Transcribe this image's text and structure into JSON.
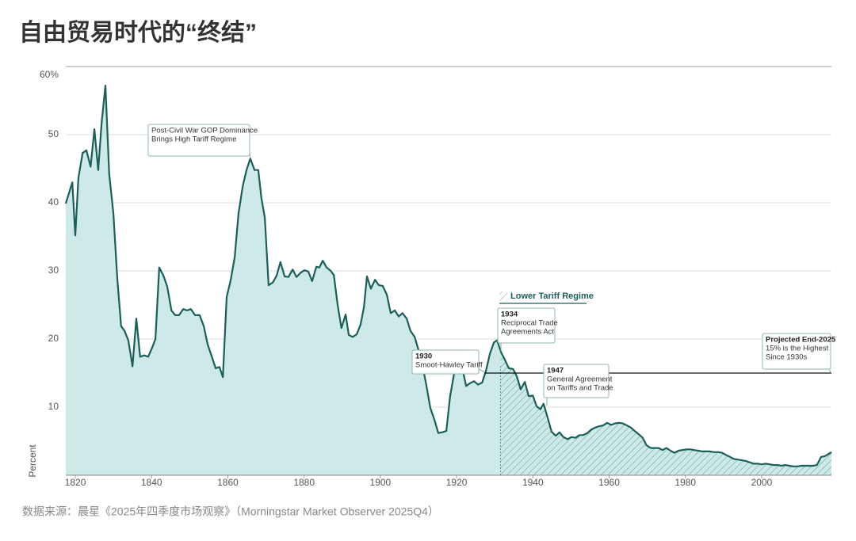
{
  "chart_data": {
    "type": "area",
    "title": "自由贸易时代的“终结”",
    "source": "数据来源：晨星《2025年四季度市场观察》（Morningstar Market Observer 2025Q4）",
    "y_label": "Percent",
    "xlim": [
      1817.5,
      2018.3
    ],
    "xticks": [
      1820,
      1840,
      1860,
      1880,
      1900,
      1920,
      1940,
      1960,
      1980,
      2000
    ],
    "ylim": [
      0,
      60
    ],
    "yticks": [
      10,
      20,
      30,
      40,
      50,
      {
        "value": 60,
        "label": "60%"
      }
    ],
    "grid": true,
    "line_color": "#1b5f5b",
    "fill_color": "#cdeae9",
    "series": [
      {
        "x": [
          1817.5,
          1819.2,
          1820,
          1820.8,
          1821.9,
          1822.9,
          1824,
          1825,
          1826,
          1826.9,
          1827.9,
          1828.9,
          1830,
          1831,
          1832,
          1832.9,
          1833.9,
          1835,
          1836,
          1837,
          1838.1,
          1839.1,
          1840.2,
          1841,
          1842,
          1843.1,
          1844.1,
          1845.2,
          1846.2,
          1847.2,
          1848.3,
          1849.3,
          1850.3,
          1851.4,
          1852.6,
          1853.7,
          1854.7,
          1855.8,
          1856.8,
          1857.8,
          1858.7,
          1859.7,
          1860.7,
          1861.8,
          1862.8,
          1863.9,
          1864.9,
          1865.9,
          1867,
          1868,
          1868.8,
          1869.7,
          1870.7,
          1871.8,
          1872.8,
          1873.8,
          1874.9,
          1875.9,
          1877,
          1878,
          1879,
          1880.1,
          1881.1,
          1882.1,
          1883.2,
          1884,
          1884.9,
          1885.9,
          1887,
          1887.8,
          1888.8,
          1889.8,
          1890.9,
          1891.7,
          1892.7,
          1893.8,
          1894.8,
          1895.7,
          1896.5,
          1897.5,
          1898.6,
          1899.6,
          1900.6,
          1901.7,
          1902.7,
          1903.8,
          1904.8,
          1905.8,
          1906.9,
          1907.9,
          1909,
          1910,
          1911,
          1912.1,
          1913.1,
          1914.2,
          1915.2,
          1916.2,
          1917.3,
          1918.3,
          1919.4,
          1920.4,
          1921.5,
          1922.5,
          1923.5,
          1924.6,
          1925.6,
          1926.7,
          1927.7,
          1928.7,
          1929.8,
          1930.6,
          1931.7,
          1932.7,
          1933.7,
          1934.8,
          1935.8,
          1936.8,
          1937.9,
          1938.9,
          1940,
          1941,
          1942,
          1942.8,
          1943.9,
          1944.9,
          1946,
          1947,
          1948,
          1949.1,
          1950.1,
          1951.2,
          1952.2,
          1953.2,
          1954.3,
          1955.3,
          1956.4,
          1957.4,
          1958.4,
          1959.5,
          1960.5,
          1961.5,
          1962.6,
          1963.6,
          1964.7,
          1965.7,
          1966.7,
          1967.8,
          1968.8,
          1969.8,
          1970.9,
          1971.9,
          1973,
          1974,
          1975,
          1976.1,
          1977.1,
          1978.2,
          1979.2,
          1980.3,
          1981.3,
          1982.3,
          1983.4,
          1984.4,
          1985.5,
          1986.5,
          1987.5,
          1988.6,
          1989.6,
          1990.6,
          1991.7,
          1992.7,
          1993.8,
          1994.8,
          1995.8,
          1996.9,
          1997.9,
          1999,
          2000,
          2001,
          2002.1,
          2003.1,
          2004.2,
          2005.2,
          2006.2,
          2007.3,
          2008.3,
          2009.4,
          2010.4,
          2011.4,
          2012.5,
          2013.5,
          2014.5,
          2015.6,
          2016.6,
          2018.3
        ],
        "values": [
          39.9,
          43,
          35.2,
          43.6,
          47.3,
          47.7,
          45.3,
          50.8,
          44.8,
          51.7,
          57.2,
          44.2,
          38.4,
          29,
          21.9,
          21.2,
          19.8,
          16,
          23,
          17.4,
          17.6,
          17.4,
          18.8,
          20,
          30.5,
          29.3,
          27.7,
          24.2,
          23.5,
          23.5,
          24.4,
          24.2,
          24.4,
          23.5,
          23.5,
          21.9,
          19.2,
          17.4,
          15.7,
          15.9,
          14.4,
          26.2,
          28.5,
          32,
          38.4,
          42.4,
          44.8,
          46.5,
          44.8,
          44.8,
          40.7,
          37.8,
          27.9,
          28.3,
          29.3,
          31.3,
          29.2,
          29.1,
          30.2,
          29.1,
          29.7,
          30.1,
          29.9,
          28.5,
          30.6,
          30.5,
          31.5,
          30.5,
          30,
          29.4,
          25,
          21.6,
          23.6,
          20.6,
          20.3,
          20.7,
          22.1,
          24.7,
          29.2,
          27.4,
          28.7,
          27.9,
          27.8,
          26.5,
          23.8,
          24.2,
          23.3,
          23.8,
          23,
          21.2,
          20.3,
          18.4,
          16.3,
          13.1,
          9.9,
          8.1,
          6.2,
          6.3,
          6.5,
          11.6,
          15.1,
          16.3,
          15.7,
          13.1,
          13.5,
          13.8,
          13.3,
          13.6,
          15.3,
          17.8,
          19.5,
          19.8,
          18,
          16.9,
          15.7,
          15.6,
          14.5,
          12.6,
          13.7,
          11.6,
          11.7,
          10.1,
          9.7,
          10.5,
          8.4,
          6.4,
          5.8,
          6.3,
          5.6,
          5.3,
          5.6,
          5.5,
          5.9,
          5.9,
          6.2,
          6.7,
          7,
          7.2,
          7.3,
          7.7,
          7.4,
          7.6,
          7.7,
          7.6,
          7.3,
          7,
          6.5,
          6,
          5.5,
          4.4,
          4,
          4,
          4,
          3.7,
          4,
          3.6,
          3.3,
          3.6,
          3.7,
          3.8,
          3.8,
          3.7,
          3.6,
          3.5,
          3.5,
          3.5,
          3.4,
          3.4,
          3.3,
          3,
          2.7,
          2.4,
          2.3,
          2.2,
          2.1,
          1.9,
          1.7,
          1.7,
          1.6,
          1.7,
          1.6,
          1.5,
          1.5,
          1.4,
          1.5,
          1.4,
          1.3,
          1.3,
          1.4,
          1.4,
          1.4,
          1.4,
          1.5,
          2.7,
          2.8,
          3.4
        ]
      }
    ],
    "region": {
      "label": "Lower Tariff Regime",
      "start": 1931.5
    },
    "reference_line": {
      "value": 15,
      "start": 1927.3
    },
    "annotations": [
      {
        "lines": [
          "Post-Civil War GOP Dominance",
          "Brings High Tariff Regime"
        ]
      },
      {
        "title": "1930",
        "lines": [
          "Smoot-Hawley Tariff"
        ]
      },
      {
        "title": "1934",
        "lines": [
          "Reciprocal Trade",
          "Agreements Act"
        ]
      },
      {
        "title": "1947",
        "lines": [
          "General Agreement",
          "on Tariffs and Trade"
        ]
      },
      {
        "title": "Projected End-2025",
        "lines": [
          "15% is the Highest",
          "Since 1930s"
        ]
      }
    ]
  }
}
